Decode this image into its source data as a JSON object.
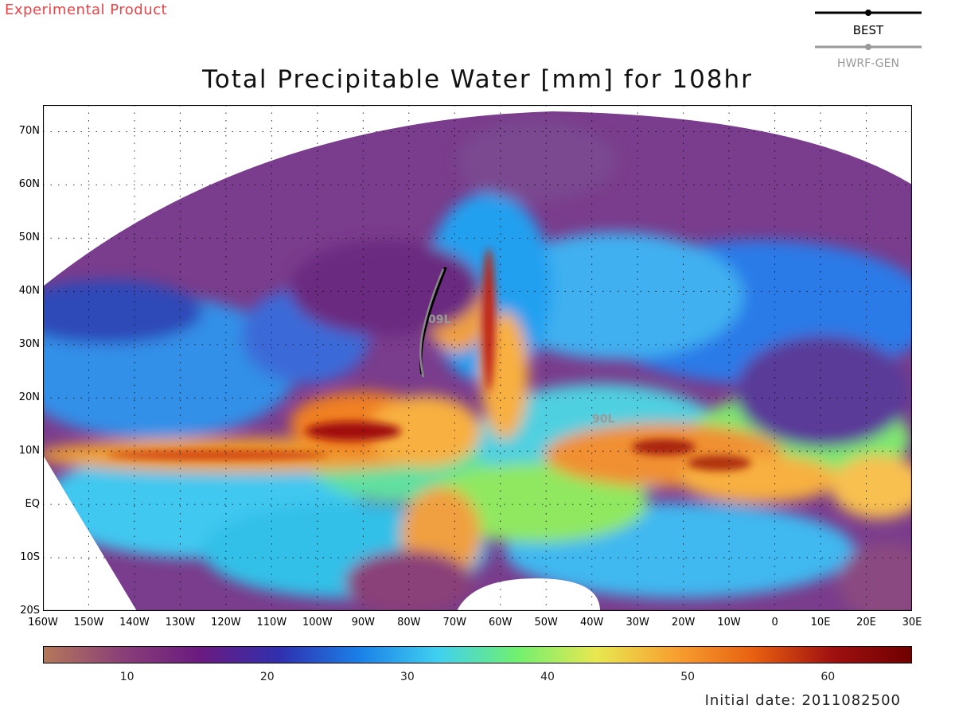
{
  "header": {
    "experimental_label": "Experimental Product",
    "title": "Total Precipitable Water [mm] for 108hr"
  },
  "legend": {
    "items": [
      {
        "label": "BEST",
        "color": "#000000"
      },
      {
        "label": "HWRF-GEN",
        "color": "#999999"
      }
    ]
  },
  "map": {
    "lat_labels": [
      "70N",
      "60N",
      "50N",
      "40N",
      "30N",
      "20N",
      "10N",
      "EQ",
      "10S",
      "20S"
    ],
    "lon_labels": [
      "160W",
      "150W",
      "140W",
      "130W",
      "120W",
      "110W",
      "100W",
      "90W",
      "80W",
      "70W",
      "60W",
      "50W",
      "40W",
      "30W",
      "20W",
      "10W",
      "0",
      "10E",
      "20E",
      "30E"
    ],
    "storm_labels": [
      "09L",
      "90L"
    ],
    "lat_range": [
      -20,
      75
    ],
    "lon_range": [
      -160,
      30
    ]
  },
  "colorbar": {
    "ticks": [
      "10",
      "20",
      "30",
      "40",
      "50",
      "60"
    ],
    "range": [
      4,
      66
    ],
    "colors": [
      "#b4785a",
      "#8a3f78",
      "#6a1a80",
      "#3030b0",
      "#1a80e8",
      "#40d0f0",
      "#70f070",
      "#e8e850",
      "#f8a030",
      "#e86010",
      "#a01010",
      "#700000"
    ]
  },
  "footer": {
    "initial_date": "Initial date: 2011082500"
  }
}
